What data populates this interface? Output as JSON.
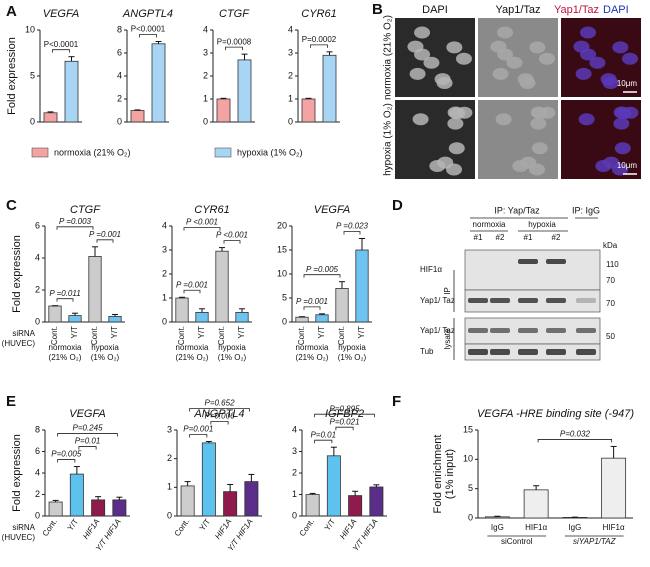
{
  "panel_labels": [
    "A",
    "B",
    "C",
    "D",
    "E",
    "F"
  ],
  "chart_data": [
    {
      "type": "bar",
      "title": "VEGFA",
      "ylabel": "Fold expression",
      "values": [
        1,
        6.6
      ],
      "errors": [
        0.1,
        0.5
      ],
      "colors": [
        "#f4a3a3",
        "#a9d5f5"
      ],
      "ylim": [
        0,
        10
      ],
      "yticks": [
        0,
        5,
        10
      ],
      "annotations": [
        {
          "text": "P<0.0001",
          "between": [
            0,
            1
          ]
        }
      ],
      "legend": [
        {
          "name": "normoxia (21% O₂)",
          "color": "#f4a3a3"
        },
        {
          "name": "hypoxia (1% O₂)",
          "color": "#a9d5f5"
        }
      ]
    },
    {
      "type": "bar",
      "title": "ANGPTL4",
      "values": [
        1,
        6.8
      ],
      "errors": [
        0.05,
        0.2
      ],
      "colors": [
        "#f4a3a3",
        "#a9d5f5"
      ],
      "ylim": [
        0,
        8
      ],
      "yticks": [
        0,
        2,
        4,
        6,
        8
      ],
      "annotations": [
        {
          "text": "P<0.0001",
          "between": [
            0,
            1
          ]
        }
      ]
    },
    {
      "type": "bar",
      "title": "CTGF",
      "values": [
        1,
        2.7
      ],
      "errors": [
        0.03,
        0.25
      ],
      "colors": [
        "#f4a3a3",
        "#a9d5f5"
      ],
      "ylim": [
        0,
        4
      ],
      "yticks": [
        0,
        1,
        2,
        3,
        4
      ],
      "annotations": [
        {
          "text": "P=0.0008",
          "between": [
            0,
            1
          ]
        }
      ]
    },
    {
      "type": "bar",
      "title": "CYR61",
      "values": [
        1,
        2.9
      ],
      "errors": [
        0.03,
        0.15
      ],
      "colors": [
        "#f4a3a3",
        "#a9d5f5"
      ],
      "ylim": [
        0,
        4
      ],
      "yticks": [
        0,
        1,
        2,
        3,
        4
      ],
      "annotations": [
        {
          "text": "P=0.0002",
          "between": [
            0,
            1
          ]
        }
      ]
    },
    {
      "type": "bar",
      "title": "CTGF",
      "ylabel": "Fold expression",
      "row_label": [
        "siRNA",
        "(HUVEC)"
      ],
      "categories": [
        "Cont.",
        "Y/T",
        "Cont.",
        "Y/T"
      ],
      "values": [
        1,
        0.4,
        4.1,
        0.35
      ],
      "errors": [
        0.02,
        0.15,
        0.6,
        0.12
      ],
      "colors": [
        "#cccccc",
        "#6fc3f0",
        "#cccccc",
        "#6fc3f0"
      ],
      "ylim": [
        0,
        6
      ],
      "yticks": [
        0,
        2,
        4,
        6
      ],
      "group_labels": [
        [
          "normoxia",
          "(21% O₂)"
        ],
        [
          "hypoxia",
          "(1% O₂)"
        ]
      ],
      "annotations": [
        {
          "text": "P =0.011",
          "between": [
            0,
            1
          ]
        },
        {
          "text": "P =0.001",
          "between": [
            2,
            3
          ]
        },
        {
          "text": "P =0.003",
          "between": [
            0,
            2
          ]
        }
      ]
    },
    {
      "type": "bar",
      "title": "CYR61",
      "categories": [
        "Cont.",
        "Y/T",
        "Cont.",
        "Y/T"
      ],
      "values": [
        1,
        0.4,
        2.95,
        0.4
      ],
      "errors": [
        0.03,
        0.15,
        0.15,
        0.15
      ],
      "colors": [
        "#cccccc",
        "#6fc3f0",
        "#cccccc",
        "#6fc3f0"
      ],
      "ylim": [
        0,
        4
      ],
      "yticks": [
        0,
        1,
        2,
        3,
        4
      ],
      "group_labels": [
        [
          "normoxia",
          "(21% O₂)"
        ],
        [
          "hypoxia",
          "(1% O₂)"
        ]
      ],
      "annotations": [
        {
          "text": "P =0.001",
          "between": [
            0,
            1
          ]
        },
        {
          "text": "P <0.001",
          "between": [
            2,
            3
          ]
        },
        {
          "text": "P <0.001",
          "between": [
            0,
            2
          ]
        }
      ]
    },
    {
      "type": "bar",
      "title": "VEGFA",
      "categories": [
        "Cont.",
        "Y/T",
        "Cont.",
        "Y/T"
      ],
      "values": [
        1,
        1.5,
        7,
        15
      ],
      "errors": [
        0.1,
        0.2,
        1.4,
        2.4
      ],
      "colors": [
        "#cccccc",
        "#6fc3f0",
        "#cccccc",
        "#6fc3f0"
      ],
      "ylim": [
        0,
        20
      ],
      "yticks": [
        0,
        5,
        10,
        15,
        20
      ],
      "group_labels": [
        [
          "normoxia",
          "(21% O₂)"
        ],
        [
          "hypoxia",
          "(1% O₂)"
        ]
      ],
      "annotations": [
        {
          "text": "P =0.001",
          "between": [
            0,
            1
          ]
        },
        {
          "text": "P =0.005",
          "between": [
            0,
            2
          ]
        },
        {
          "text": "P =0.023",
          "between": [
            2,
            3
          ]
        }
      ]
    },
    {
      "type": "bar",
      "title": "VEGFA",
      "ylabel": "Fold expression",
      "row_label": [
        "siRNA",
        "(HUVEC)"
      ],
      "categories": [
        "Cont.",
        "Y/T",
        "HIF1A",
        "Y/T HIF1A"
      ],
      "values": [
        1.3,
        3.9,
        1.5,
        1.5
      ],
      "errors": [
        0.15,
        0.7,
        0.3,
        0.25
      ],
      "colors": [
        "#cccccc",
        "#5ec2ef",
        "#8e1b4c",
        "#5a2d88"
      ],
      "ylim": [
        0,
        8
      ],
      "yticks": [
        0,
        2,
        4,
        6,
        8
      ],
      "annotations": [
        {
          "text": "P=0.005",
          "between": [
            0,
            1
          ]
        },
        {
          "text": "P=0.01",
          "between": [
            1,
            2
          ]
        },
        {
          "text": "P=0.245",
          "between": [
            0,
            3
          ]
        }
      ]
    },
    {
      "type": "bar",
      "title": "ANGPTL4",
      "categories": [
        "Cont.",
        "Y/T",
        "HIF1A",
        "Y/T HIF1A"
      ],
      "values": [
        1.05,
        2.55,
        0.85,
        1.2
      ],
      "errors": [
        0.15,
        0.05,
        0.25,
        0.25
      ],
      "colors": [
        "#cccccc",
        "#5ec2ef",
        "#8e1b4c",
        "#5a2d88"
      ],
      "ylim": [
        0,
        3
      ],
      "yticks": [
        0,
        1,
        2,
        3
      ],
      "annotations": [
        {
          "text": "P=0.001",
          "between": [
            0,
            1
          ]
        },
        {
          "text": "P=0.006",
          "between": [
            1,
            2
          ]
        },
        {
          "text": "P=0.652",
          "between": [
            0,
            3
          ]
        }
      ]
    },
    {
      "type": "bar",
      "title": "IGFBP2",
      "categories": [
        "Cont.",
        "Y/T",
        "HIF1A",
        "Y/T HIF1A"
      ],
      "values": [
        1.0,
        2.8,
        0.95,
        1.35
      ],
      "errors": [
        0.05,
        0.4,
        0.2,
        0.1
      ],
      "colors": [
        "#cccccc",
        "#5ec2ef",
        "#8e1b4c",
        "#5a2d88"
      ],
      "ylim": [
        0,
        4
      ],
      "yticks": [
        0,
        1,
        2,
        3,
        4
      ],
      "annotations": [
        {
          "text": "P=0.01",
          "between": [
            0,
            1
          ]
        },
        {
          "text": "P=0.021",
          "between": [
            1,
            2
          ]
        },
        {
          "text": "P=0.895",
          "between": [
            0,
            3
          ]
        }
      ]
    },
    {
      "type": "bar",
      "title": "VEGFA -HRE binding site (-947)",
      "ylabel": [
        "Fold enrichment",
        "(1% input)"
      ],
      "categories": [
        "IgG",
        "HIF1α",
        "IgG",
        "HIF1α"
      ],
      "values": [
        0.2,
        4.8,
        0.1,
        10.2
      ],
      "errors": [
        0.1,
        0.7,
        0.05,
        2.0
      ],
      "colors": [
        "#d9d9d9",
        "#eeeeee",
        "#d9d9d9",
        "#eeeeee"
      ],
      "ylim": [
        0,
        15
      ],
      "yticks": [
        0,
        5,
        10,
        15
      ],
      "group_labels": [
        [
          "siControl"
        ],
        [
          "siYAP1/TAZ"
        ]
      ],
      "annotations": [
        {
          "text": "P=0.032",
          "between": [
            1,
            3
          ]
        }
      ]
    }
  ],
  "microscopy": {
    "columns": [
      "DAPI",
      "Yap1/Taz"
    ],
    "merge_label": [
      "Yap1/Taz",
      "DAPI"
    ],
    "rows": [
      "normoxia (21% O₂)",
      "hypoxia (1% O₂)"
    ],
    "scale_bar": "10μm"
  },
  "blot": {
    "ip_labels": [
      "IP: Yap/Taz",
      "IP: IgG"
    ],
    "conditions": [
      "normoxia",
      "hypoxia"
    ],
    "lanes": [
      "#1",
      "#2",
      "#1",
      "#2"
    ],
    "kda_label": "kDa",
    "rows": [
      "HIF1α",
      "Yap1/ Taz",
      "Yap1/ Taz",
      "Tub"
    ],
    "sections": [
      "IP",
      "lysate"
    ],
    "markers": [
      "110",
      "70",
      "70",
      "50"
    ]
  }
}
